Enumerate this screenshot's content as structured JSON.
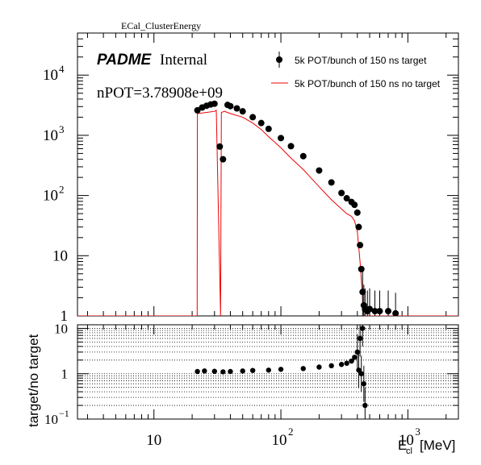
{
  "chart_data": [
    {
      "type": "line",
      "title": "ECal_ClusterEnergy",
      "label_brand": "PADME",
      "label_status": "Internal",
      "annotation": "nPOT=3.78908e+09",
      "x_scale": "log",
      "y_scale": "log",
      "xlim": [
        2.5,
        2500
      ],
      "ylim": [
        1,
        50000
      ],
      "legend_position": "top-right",
      "y_ticks": [
        {
          "value": 1,
          "label": "1"
        },
        {
          "value": 10,
          "label": "10"
        },
        {
          "value": 100,
          "label": "10",
          "exp": "2"
        },
        {
          "value": 1000,
          "label": "10",
          "exp": "3"
        },
        {
          "value": 10000,
          "label": "10",
          "exp": "4"
        }
      ],
      "series": [
        {
          "name": "5k POT/bunch of 150 ns target",
          "style": "markers",
          "color": "#000000",
          "x": [
            22,
            24,
            26,
            28,
            30,
            33,
            35,
            38,
            40,
            45,
            50,
            60,
            70,
            80,
            100,
            120,
            150,
            200,
            250,
            300,
            330,
            360,
            380,
            400,
            410,
            420,
            430,
            440,
            450,
            460,
            480,
            500,
            550,
            600,
            700,
            800
          ],
          "y": [
            2600,
            2900,
            3100,
            3250,
            3350,
            650,
            400,
            3200,
            3050,
            2800,
            2500,
            2000,
            1600,
            1280,
            900,
            660,
            450,
            260,
            165,
            110,
            90,
            78,
            70,
            52,
            30,
            15,
            6,
            2.5,
            1.5,
            1.3,
            1.2,
            1.3,
            1.2,
            1.2,
            1.2,
            1.1
          ]
        },
        {
          "name": "5k POT/bunch of 150 ns no target",
          "style": "histogram",
          "color": "#ee0000",
          "x": [
            2.5,
            21.9,
            22,
            30,
            31,
            33.5,
            34,
            36,
            40,
            50,
            60,
            70,
            80,
            100,
            120,
            150,
            200,
            250,
            300,
            330,
            360,
            380,
            400,
            420,
            440,
            450,
            2500
          ],
          "y": [
            1,
            1,
            2300,
            2500,
            2600,
            1,
            2400,
            2500,
            2300,
            2000,
            1600,
            1250,
            950,
            620,
            420,
            270,
            140,
            85,
            60,
            50,
            45,
            38,
            25,
            8,
            2,
            1,
            1
          ]
        }
      ]
    },
    {
      "type": "scatter",
      "ylabel": "target/no target",
      "xlabel": "E",
      "xlabel_sub": "cl",
      "xlabel_unit": "[MeV]",
      "x_scale": "log",
      "y_scale": "log",
      "xlim": [
        2.5,
        2500
      ],
      "ylim": [
        0.1,
        12
      ],
      "grid": "y-dotted",
      "x_ticks": [
        {
          "value": 10,
          "label": "10"
        },
        {
          "value": 100,
          "label": "10",
          "exp": "2"
        },
        {
          "value": 1000,
          "label": "10",
          "exp": "3"
        }
      ],
      "y_ticks": [
        {
          "value": 0.1,
          "label": "10",
          "exp": "−1"
        },
        {
          "value": 1,
          "label": "1"
        },
        {
          "value": 10,
          "label": "10"
        }
      ],
      "x": [
        22,
        25,
        30,
        35,
        40,
        50,
        60,
        80,
        100,
        150,
        200,
        250,
        300,
        330,
        360,
        380,
        400,
        410,
        420,
        430,
        440,
        450,
        460
      ],
      "y": [
        1.12,
        1.15,
        1.13,
        1.1,
        1.12,
        1.15,
        1.18,
        1.2,
        1.25,
        1.3,
        1.4,
        1.5,
        1.6,
        1.7,
        1.9,
        2.3,
        3.0,
        1.2,
        6.0,
        1.0,
        10.0,
        0.6,
        0.2
      ]
    }
  ]
}
